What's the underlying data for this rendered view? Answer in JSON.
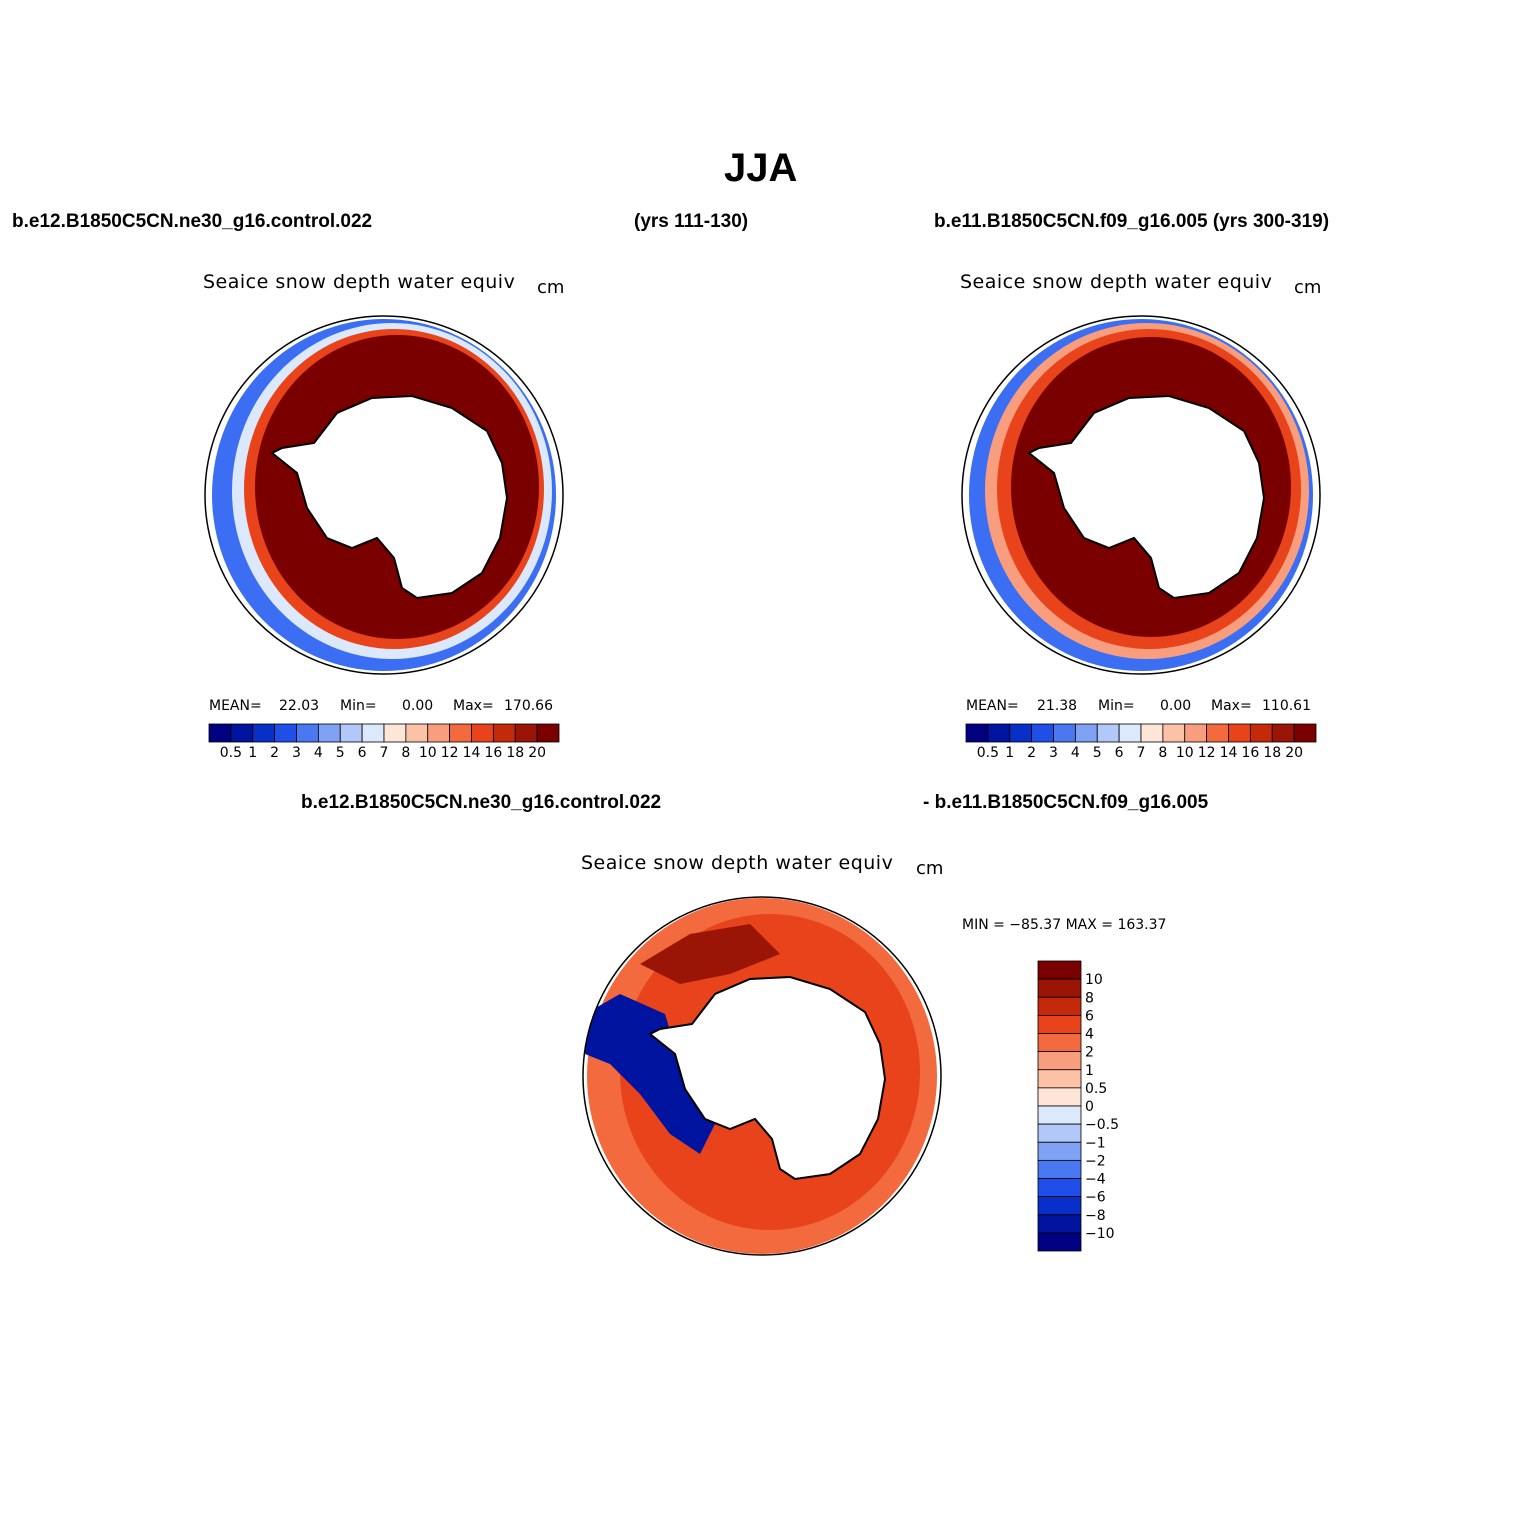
{
  "title": "JJA",
  "case1": {
    "name": "b.e12.B1850C5CN.ne30_g16.control.022",
    "years": "(yrs 111-130)"
  },
  "case2": {
    "full": "b.e11.B1850C5CN.f09_g16.005 (yrs 300-319)"
  },
  "diff": {
    "left": "b.e12.B1850C5CN.ne30_g16.control.022",
    "right": "- b.e11.B1850C5CN.f09_g16.005"
  },
  "variable": "Seaice snow depth water equiv",
  "units": "cm",
  "panel1": {
    "mean_label": "MEAN=",
    "mean": "22.03",
    "min_label": "Min=",
    "min": "0.00",
    "max_label": "Max=",
    "max": "170.66"
  },
  "panel2": {
    "mean_label": "MEAN=",
    "mean": "21.38",
    "min_label": "Min=",
    "min": "0.00",
    "max_label": "Max=",
    "max": "110.61"
  },
  "panel3": {
    "minmax": "MIN = −85.37  MAX = 163.37"
  },
  "chart_data": [
    {
      "type": "heatmap",
      "title": "Seaice snow depth water equiv",
      "units": "cm",
      "projection": "south polar stereographic",
      "stats": {
        "mean": 22.03,
        "min": 0.0,
        "max": 170.66
      },
      "levels": [
        0.5,
        1,
        2,
        3,
        4,
        5,
        6,
        7,
        8,
        10,
        12,
        14,
        16,
        18,
        20
      ],
      "level_labels": [
        "0.5",
        "1",
        "2",
        "3",
        "4",
        "5",
        "6",
        "7",
        "8",
        "10",
        "12",
        "14",
        "16",
        "18",
        "20"
      ],
      "colors": [
        "#000080",
        "#0014a0",
        "#0830c8",
        "#1f4fe8",
        "#4a78f0",
        "#7fa2f5",
        "#b2c8f8",
        "#dce8fb",
        "#fde6d8",
        "#fcc2a6",
        "#f89e7e",
        "#f26a3e",
        "#e8431a",
        "#c42a0a",
        "#9a1505",
        "#7a0000"
      ]
    },
    {
      "type": "heatmap",
      "title": "Seaice snow depth water equiv",
      "units": "cm",
      "projection": "south polar stereographic",
      "stats": {
        "mean": 21.38,
        "min": 0.0,
        "max": 110.61
      },
      "levels": [
        0.5,
        1,
        2,
        3,
        4,
        5,
        6,
        7,
        8,
        10,
        12,
        14,
        16,
        18,
        20
      ],
      "level_labels": [
        "0.5",
        "1",
        "2",
        "3",
        "4",
        "5",
        "6",
        "7",
        "8",
        "10",
        "12",
        "14",
        "16",
        "18",
        "20"
      ],
      "colors": [
        "#000080",
        "#0014a0",
        "#0830c8",
        "#1f4fe8",
        "#4a78f0",
        "#7fa2f5",
        "#b2c8f8",
        "#dce8fb",
        "#fde6d8",
        "#fcc2a6",
        "#f89e7e",
        "#f26a3e",
        "#e8431a",
        "#c42a0a",
        "#9a1505",
        "#7a0000"
      ]
    },
    {
      "type": "heatmap",
      "title": "Seaice snow depth water equiv",
      "units": "cm",
      "projection": "south polar stereographic",
      "stats": {
        "min": -85.37,
        "max": 163.37
      },
      "levels": [
        -10,
        -8,
        -6,
        -4,
        -2,
        -1,
        -0.5,
        0,
        0.5,
        1,
        2,
        4,
        6,
        8,
        10
      ],
      "level_labels": [
        "−10",
        "−8",
        "−6",
        "−4",
        "−2",
        "−1",
        "−0.5",
        "0",
        "0.5",
        "1",
        "2",
        "4",
        "6",
        "8",
        "10"
      ],
      "colors": [
        "#000080",
        "#0014a0",
        "#0830c8",
        "#1f4fe8",
        "#4a78f0",
        "#7fa2f5",
        "#b2c8f8",
        "#dce8fb",
        "#fde6d8",
        "#fcc2a6",
        "#f89e7e",
        "#f26a3e",
        "#e8431a",
        "#c42a0a",
        "#9a1505",
        "#7a0000"
      ]
    }
  ]
}
